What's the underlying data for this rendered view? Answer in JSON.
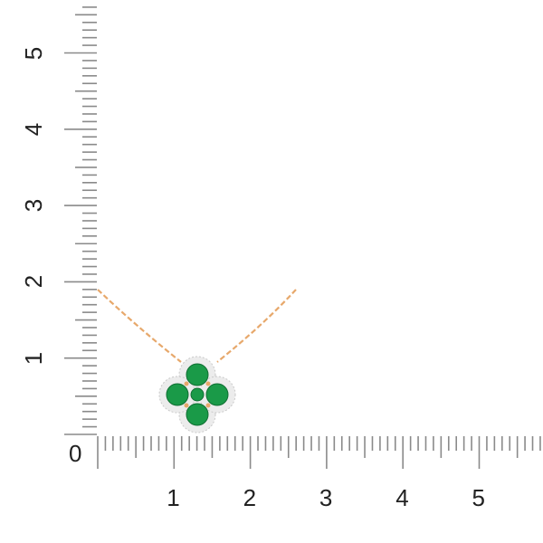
{
  "ruler": {
    "unit_labels_x": [
      "0",
      "1",
      "2",
      "3",
      "4",
      "5"
    ],
    "unit_labels_y": [
      "1",
      "2",
      "3",
      "4",
      "5"
    ],
    "minor_divisions_per_unit": 10,
    "tick_color": "#8a8a8a"
  },
  "product": {
    "kind": "clover pendant necklace",
    "stone_color": "#1a9a48",
    "metal_color": "#e7a86b",
    "halo_color": "#e4e4e4"
  }
}
